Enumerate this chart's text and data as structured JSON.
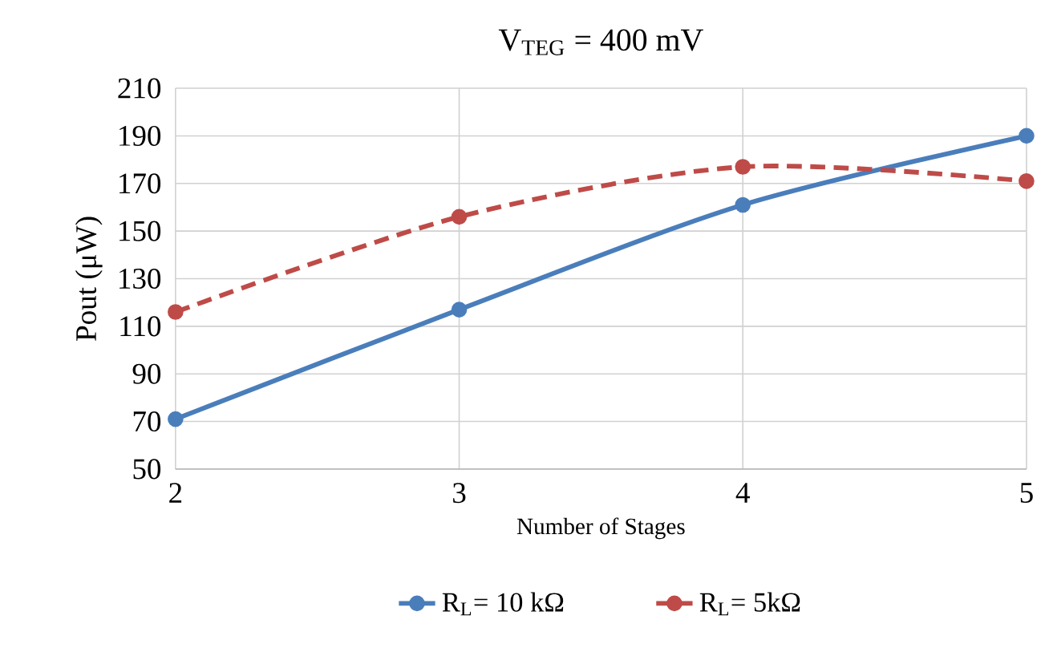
{
  "chart_data": {
    "type": "line",
    "title": "V$_{TEG}$ = 400 mV",
    "xlabel": "Number of Stages",
    "ylabel": "Pout   (μW)",
    "x": [
      2,
      3,
      4,
      5
    ],
    "series": [
      {
        "name": "R$_{L}$= 10 kΩ",
        "color": "#4a7ebb",
        "values": [
          71,
          117,
          161,
          190
        ],
        "line_style": "solid"
      },
      {
        "name": "R$_{L}$= 5kΩ",
        "color": "#be4b48",
        "values": [
          116,
          156,
          177,
          171
        ],
        "line_style": "dashed"
      }
    ],
    "xlim": [
      2,
      5
    ],
    "xticks": [
      2,
      3,
      4,
      5
    ],
    "ylim": [
      50,
      210
    ],
    "yticks": [
      50,
      70,
      90,
      110,
      130,
      150,
      170,
      190,
      210
    ],
    "grid": true,
    "legend": "bottom",
    "marker": "circle"
  }
}
